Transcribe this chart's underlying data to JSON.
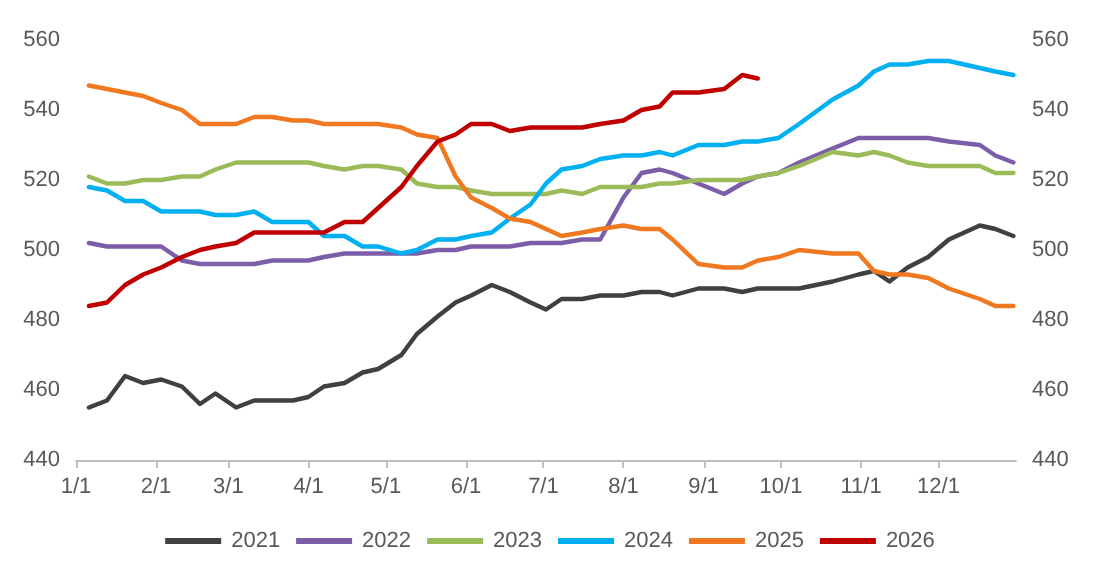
{
  "chart_data": {
    "type": "line",
    "x": [
      "--01-06",
      "--01-13",
      "--01-20",
      "--01-27",
      "--02-03",
      "--02-11",
      "--02-18",
      "--02-24",
      "--03-04",
      "--03-11",
      "--03-18",
      "--03-26",
      "--04-01",
      "--04-07",
      "--04-15",
      "--04-22",
      "--04-28",
      "--05-07",
      "--05-13",
      "--05-21",
      "--05-28",
      "--06-03",
      "--06-11",
      "--06-18",
      "--06-26",
      "--07-02",
      "--07-08",
      "--07-16",
      "--07-23",
      "--08-01",
      "--08-08",
      "--08-15",
      "--08-20",
      "--08-30",
      "--09-09",
      "--09-16",
      "--09-22",
      "--09-30",
      "--10-08",
      "--10-21",
      "--10-31",
      "--11-06",
      "--11-12",
      "--11-19",
      "--11-27",
      "--12-05",
      "--12-17",
      "--12-23",
      "--12-30"
    ],
    "xlim": [
      "--01-01",
      "--12-31"
    ],
    "xticks": [
      {
        "value": "--01-01",
        "label": "1/1"
      },
      {
        "value": "--02-01",
        "label": "2/1"
      },
      {
        "value": "--03-01",
        "label": "3/1"
      },
      {
        "value": "--04-01",
        "label": "4/1"
      },
      {
        "value": "--05-01",
        "label": "5/1"
      },
      {
        "value": "--06-01",
        "label": "6/1"
      },
      {
        "value": "--07-01",
        "label": "7/1"
      },
      {
        "value": "--08-01",
        "label": "8/1"
      },
      {
        "value": "--09-01",
        "label": "9/1"
      },
      {
        "value": "--10-01",
        "label": "10/1"
      },
      {
        "value": "--11-01",
        "label": "11/1"
      },
      {
        "value": "--12-01",
        "label": "12/1"
      }
    ],
    "ylim": [
      440,
      560
    ],
    "yticks": [
      440,
      460,
      480,
      500,
      520,
      540,
      560
    ],
    "y2lim": [
      440,
      560
    ],
    "y2ticks": [
      440,
      460,
      480,
      500,
      520,
      540,
      560
    ],
    "grid": false,
    "legend": "bottom",
    "marker": "none",
    "line_style": "solid",
    "series": [
      {
        "name": "2021",
        "color": "#404040",
        "values": [
          455,
          457,
          464,
          462,
          463,
          461,
          456,
          459,
          455,
          457,
          457,
          457,
          458,
          461,
          462,
          465,
          466,
          470,
          476,
          481,
          485,
          487,
          490,
          488,
          485,
          483,
          486,
          486,
          487,
          487,
          488,
          488,
          487,
          489,
          489,
          488,
          489,
          489,
          489,
          491,
          493,
          494,
          491,
          495,
          498,
          503,
          507,
          506,
          504
        ]
      },
      {
        "name": "2022",
        "color": "#7b5ea7",
        "values": [
          502,
          501,
          501,
          501,
          501,
          497,
          496,
          496,
          496,
          496,
          497,
          497,
          497,
          498,
          499,
          499,
          499,
          499,
          499,
          500,
          500,
          501,
          501,
          501,
          502,
          502,
          502,
          503,
          503,
          515,
          522,
          523,
          522,
          519,
          516,
          519,
          521,
          522,
          525,
          529,
          532,
          532,
          532,
          532,
          532,
          531,
          530,
          527,
          525
        ]
      },
      {
        "name": "2023",
        "color": "#9bbb59",
        "values": [
          521,
          519,
          519,
          520,
          520,
          521,
          521,
          523,
          525,
          525,
          525,
          525,
          525,
          524,
          523,
          524,
          524,
          523,
          519,
          518,
          518,
          517,
          516,
          516,
          516,
          516,
          517,
          516,
          518,
          518,
          518,
          519,
          519,
          520,
          520,
          520,
          521,
          522,
          524,
          528,
          527,
          528,
          527,
          525,
          524,
          524,
          524,
          522,
          522
        ]
      },
      {
        "name": "2024",
        "color": "#00b0f0",
        "values": [
          518,
          517,
          514,
          514,
          511,
          511,
          511,
          510,
          510,
          511,
          508,
          508,
          508,
          504,
          504,
          501,
          501,
          499,
          500,
          503,
          503,
          504,
          505,
          509,
          513,
          519,
          523,
          524,
          526,
          527,
          527,
          528,
          527,
          530,
          530,
          531,
          531,
          532,
          536,
          543,
          547,
          551,
          553,
          553,
          554,
          554,
          552,
          551,
          550
        ]
      },
      {
        "name": "2025",
        "color": "#f07820",
        "values": [
          547,
          546,
          545,
          544,
          542,
          540,
          536,
          536,
          536,
          538,
          538,
          537,
          537,
          536,
          536,
          536,
          536,
          535,
          533,
          532,
          521,
          515,
          512,
          509,
          508,
          506,
          504,
          505,
          506,
          507,
          506,
          506,
          503,
          496,
          495,
          495,
          497,
          498,
          500,
          499,
          499,
          494,
          493,
          493,
          492,
          489,
          486,
          484,
          484
        ]
      },
      {
        "name": "2026",
        "color": "#c00000",
        "values": [
          484,
          485,
          490,
          493,
          495,
          498,
          500,
          501,
          502,
          505,
          505,
          505,
          505,
          505,
          508,
          508,
          512,
          518,
          524,
          531,
          533,
          536,
          536,
          534,
          535,
          535,
          535,
          535,
          536,
          537,
          540,
          541,
          545,
          545,
          546,
          550,
          549,
          null,
          null,
          null,
          null,
          null,
          null,
          null,
          null,
          null,
          null,
          null,
          null
        ]
      }
    ]
  }
}
